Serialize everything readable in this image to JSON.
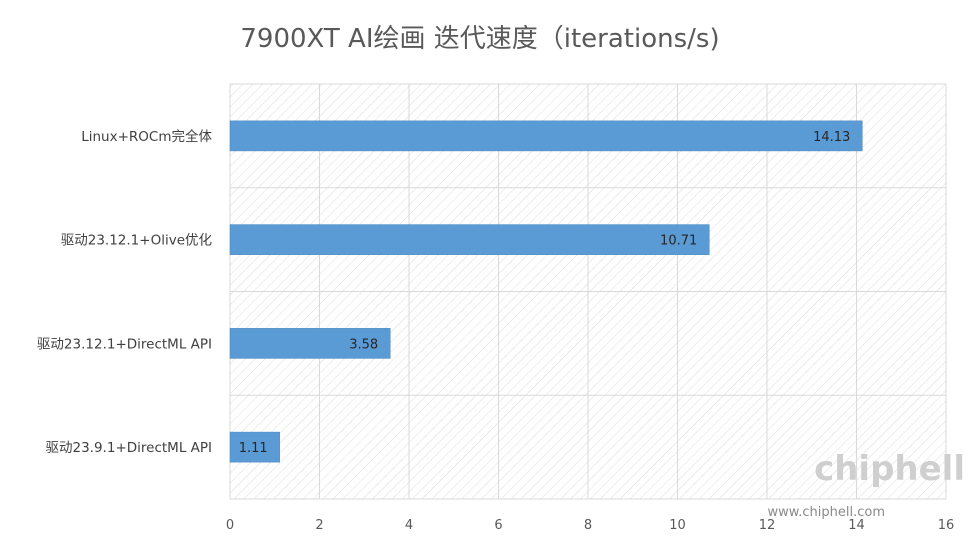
{
  "chart_data": {
    "type": "bar",
    "orientation": "horizontal",
    "title": "7900XT AI绘画  迭代速度（iterations/s)",
    "categories": [
      "Linux+ROCm完全体",
      "驱动23.12.1+Olive优化",
      "驱动23.12.1+DirectML API",
      "驱动23.9.1+DirectML API"
    ],
    "values": [
      14.13,
      10.71,
      3.58,
      1.11
    ],
    "data_labels": [
      "14.13",
      "10.71",
      "3.58",
      "1.11"
    ],
    "xlim": [
      0,
      16
    ],
    "x_ticks": [
      "0",
      "2",
      "4",
      "6",
      "8",
      "10",
      "12",
      "14",
      "16"
    ],
    "grid": true,
    "plot_background": "diagonal-hatch",
    "bar_color": "#5b9bd5",
    "grid_color": "#d9d9d9",
    "title_color": "#595959",
    "legend": "none"
  },
  "watermark": {
    "url": "www.chiphell.com",
    "logo": "chiphell"
  }
}
